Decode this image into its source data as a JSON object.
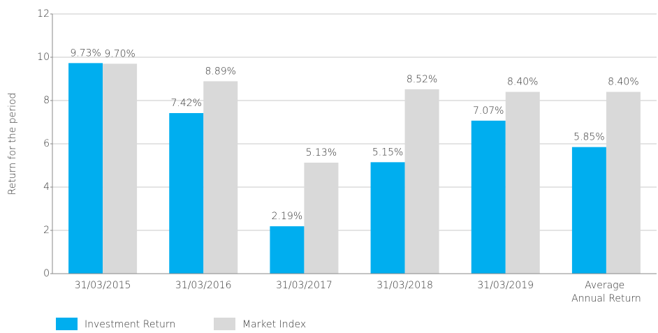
{
  "chart_data": {
    "type": "bar",
    "y_label": "Return for the period",
    "categories": [
      "31/03/2015",
      "31/03/2016",
      "31/03/2017",
      "31/03/2018",
      "31/03/2019",
      "Average Annual Return"
    ],
    "series": [
      {
        "name": "Investment Return",
        "color": "#00aeef",
        "values": [
          9.73,
          7.42,
          2.19,
          5.15,
          7.07,
          5.85
        ],
        "value_labels": [
          "9.73%",
          "7.42%",
          "2.19%",
          "5.15%",
          "7.07%",
          "5.85%"
        ]
      },
      {
        "name": "Market Index",
        "color": "#d9d9d9",
        "values": [
          9.7,
          8.89,
          5.13,
          8.52,
          8.4,
          8.4
        ],
        "value_labels": [
          "9.70%",
          "8.89%",
          "5.13%",
          "8.52%",
          "8.40%",
          "8.40%"
        ]
      }
    ],
    "ylim": [
      0,
      12
    ],
    "yticks": [
      0,
      2,
      4,
      6,
      8,
      10,
      12
    ],
    "grid": true,
    "legend": "bottom-left"
  }
}
